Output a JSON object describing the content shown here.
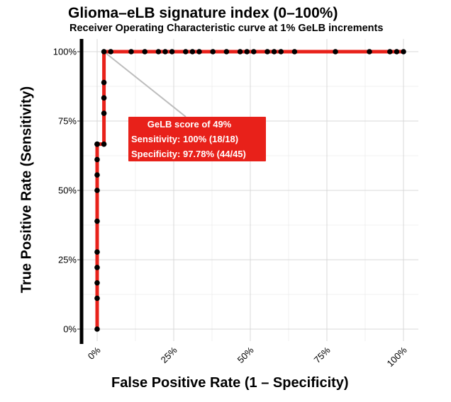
{
  "chart_data": {
    "type": "line",
    "title": "Glioma–eLB signature index (0–100%)",
    "subtitle": "Receiver Operating Characteristic curve at 1% GeLB increments",
    "xlabel": "False Positive Rate (1 – Specificity)",
    "ylabel": "True Positive Rate (Sensitivity)",
    "xlim": [
      0,
      100
    ],
    "ylim": [
      0,
      100
    ],
    "x_ticks": [
      "0%",
      "25%",
      "50%",
      "75%",
      "100%"
    ],
    "y_ticks": [
      "0%",
      "25%",
      "50%",
      "75%",
      "100%"
    ],
    "grid": true,
    "series": [
      {
        "line_color": "#e8211a",
        "x": [
          0,
          0,
          0,
          0,
          0,
          0,
          0,
          0,
          0,
          0,
          0,
          0,
          2.22,
          2.22,
          2.22,
          2.22,
          2.22,
          4.44,
          11.11,
          15.56,
          20.0,
          22.22,
          24.44,
          28.89,
          31.11,
          33.33,
          37.78,
          42.22,
          46.67,
          48.89,
          51.11,
          55.56,
          57.78,
          60.0,
          64.44,
          77.78,
          88.89,
          95.56,
          97.78,
          100.0
        ],
        "y": [
          0,
          11.11,
          16.67,
          22.22,
          27.78,
          38.89,
          50.0,
          55.56,
          61.11,
          66.67,
          66.67,
          66.67,
          66.67,
          77.78,
          83.33,
          88.89,
          100,
          100,
          100,
          100,
          100,
          100,
          100,
          100,
          100,
          100,
          100,
          100,
          100,
          100,
          100,
          100,
          100,
          100,
          100,
          100,
          100,
          100,
          100,
          100
        ]
      }
    ],
    "annotation": {
      "lines": [
        "GeLB score of 49%",
        "Sensitivity: 100% (18/18)",
        "Specificity: 97.78% (44/45)"
      ],
      "point": {
        "x": 2.22,
        "y": 100
      },
      "box_color": "#e8211a",
      "connector_color": "#bdbdbd"
    }
  }
}
